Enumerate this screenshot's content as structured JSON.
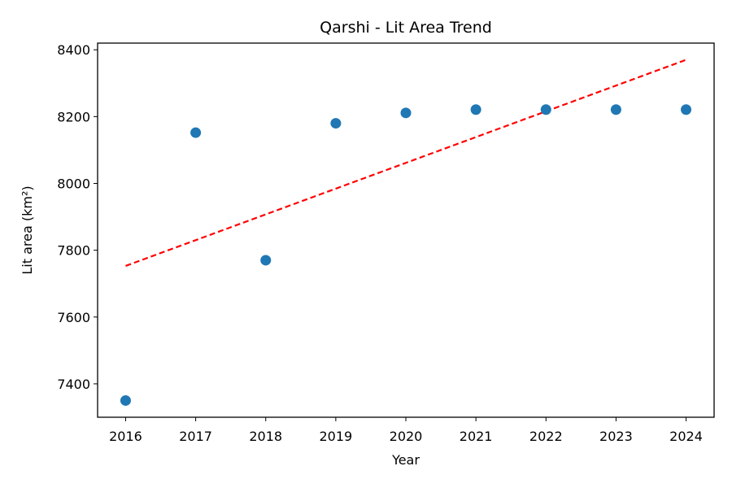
{
  "chart_data": {
    "type": "scatter",
    "title": "Qarshi - Lit Area Trend",
    "xlabel": "Year",
    "ylabel": "Lit area (km²)",
    "x": [
      2016,
      2017,
      2018,
      2019,
      2020,
      2021,
      2022,
      2023,
      2024
    ],
    "y": [
      7350,
      8152,
      7770,
      8180,
      8211,
      8221,
      8221,
      8221,
      8221
    ],
    "trendline": {
      "x": [
        2016,
        2024
      ],
      "y": [
        7753,
        8370
      ]
    },
    "xlim": [
      2015.6,
      2024.4
    ],
    "ylim": [
      7300,
      8420
    ],
    "xticks": [
      2016,
      2017,
      2018,
      2019,
      2020,
      2021,
      2022,
      2023,
      2024
    ],
    "yticks": [
      7400,
      7600,
      7800,
      8000,
      8200,
      8400
    ],
    "grid": false,
    "colors": {
      "points": "#1f77b4",
      "trend": "#ff0000",
      "axes": "#000000"
    }
  }
}
